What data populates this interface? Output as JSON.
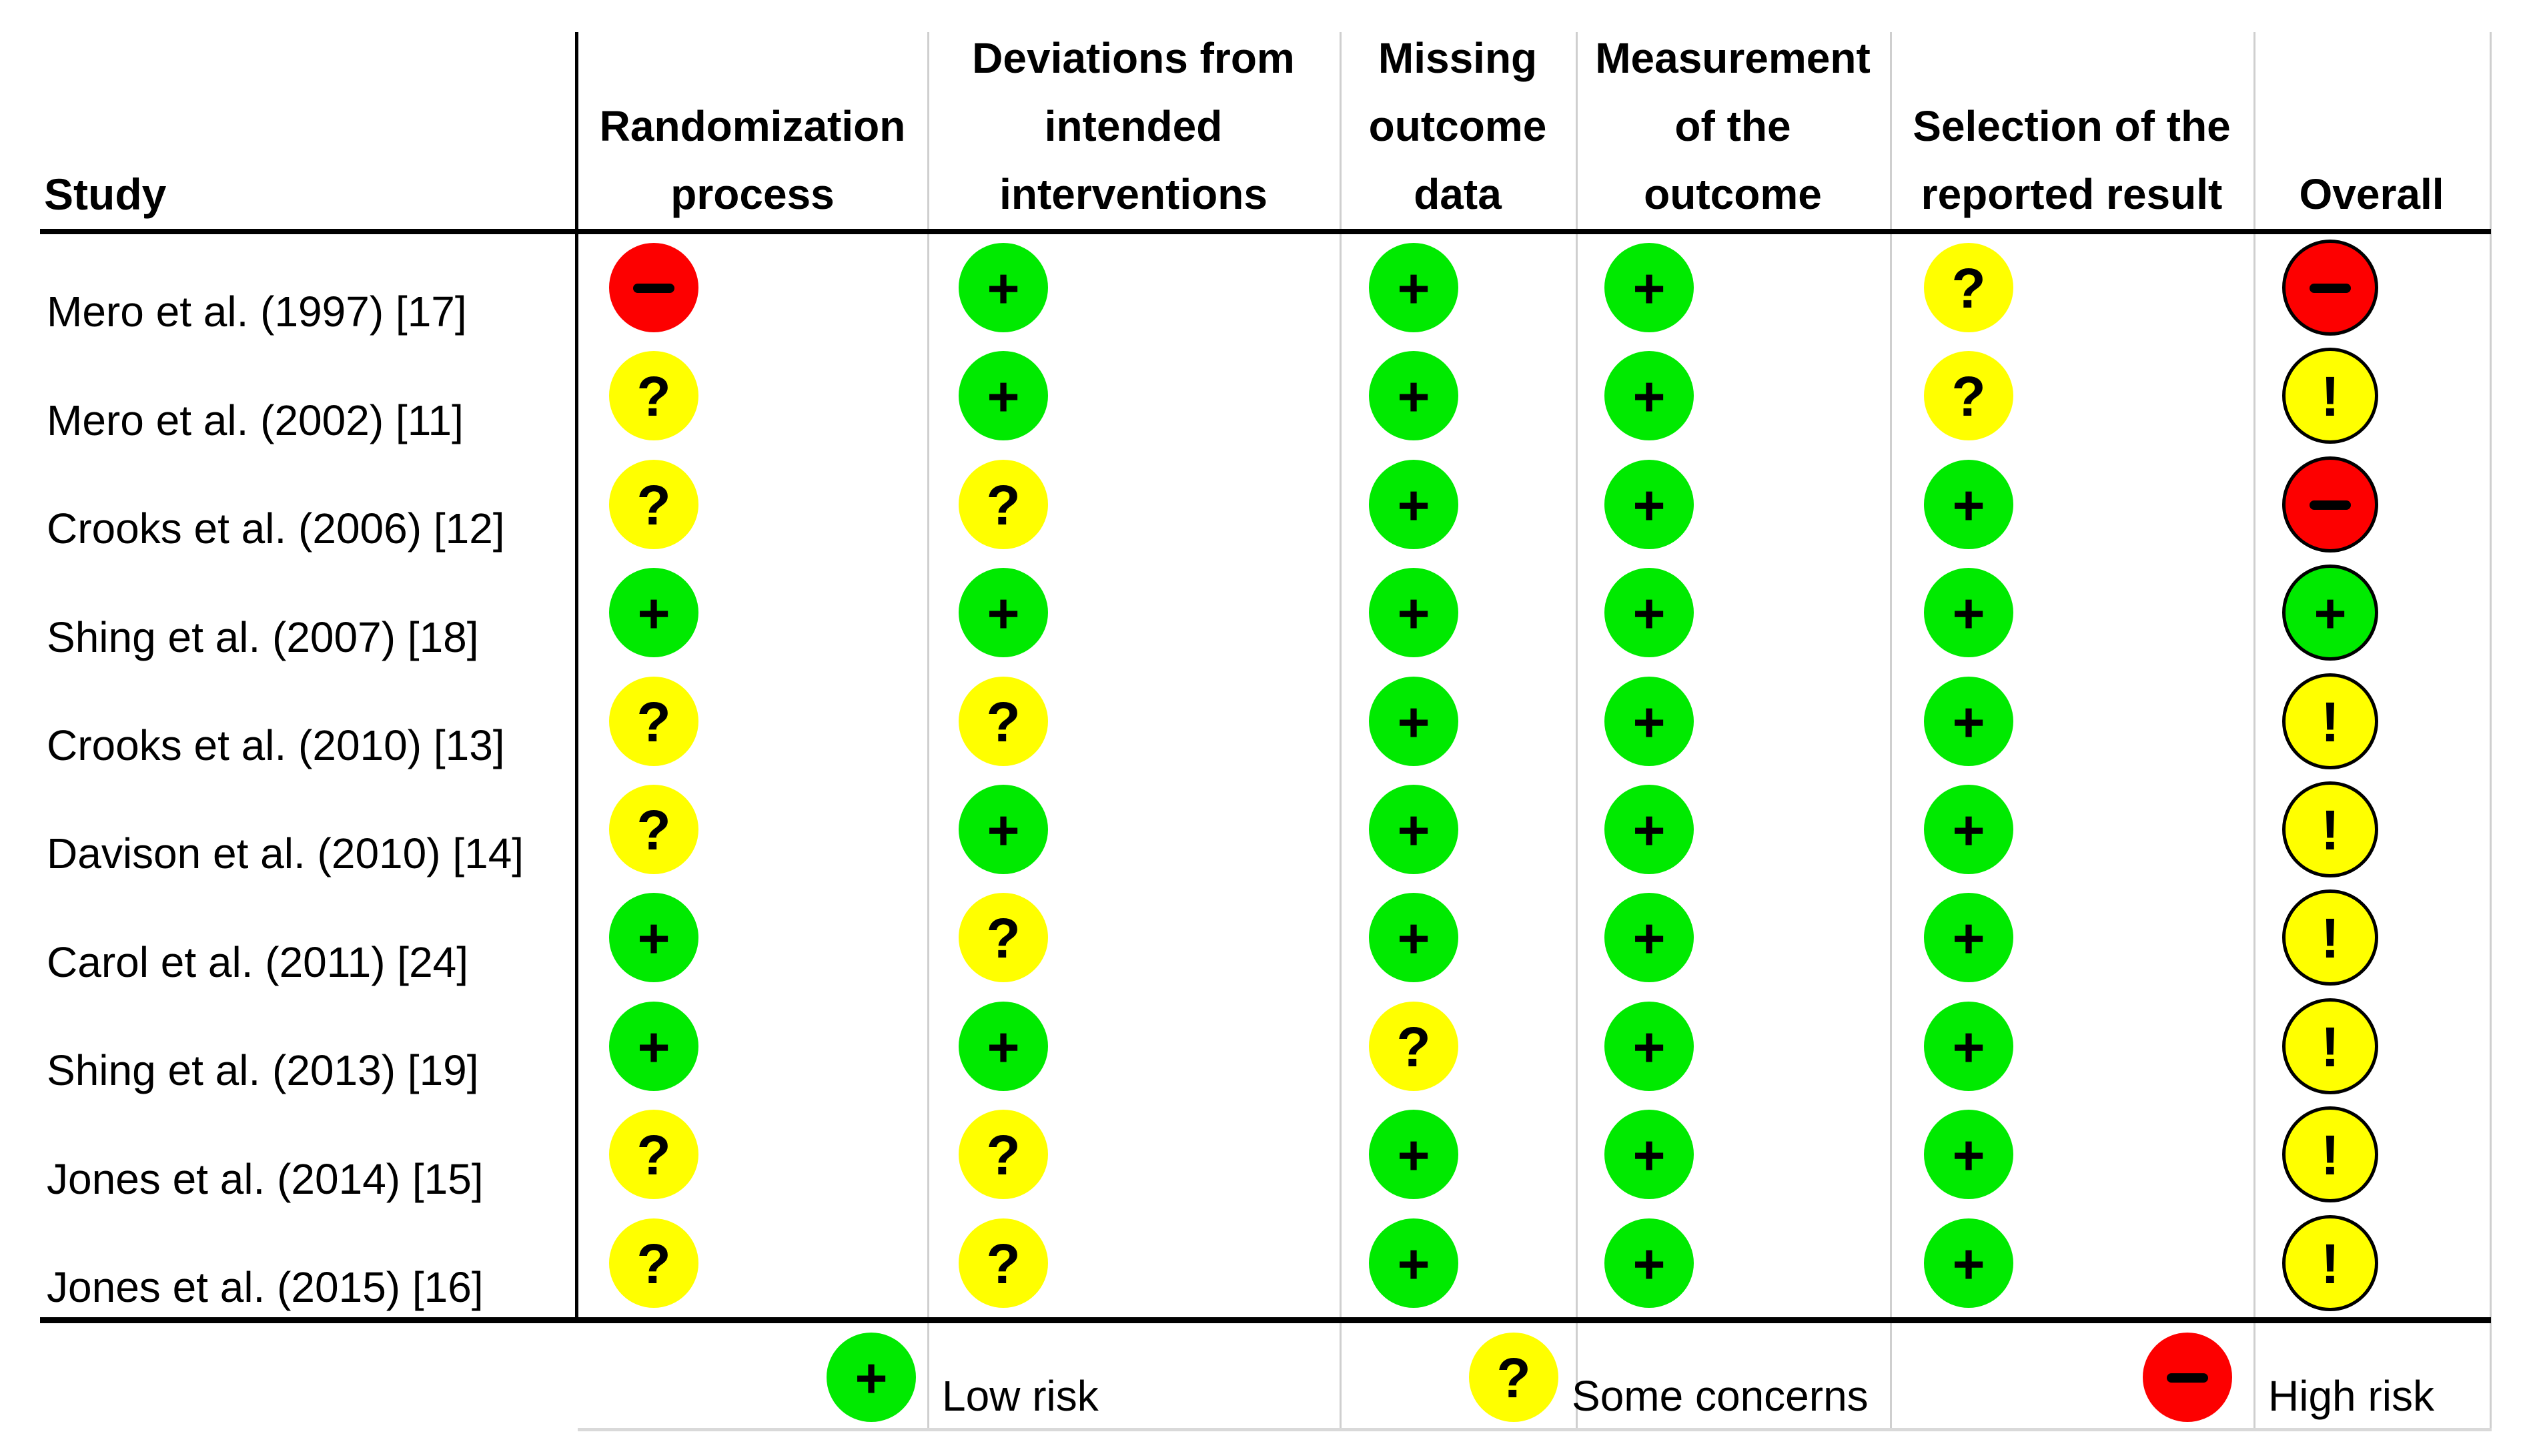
{
  "chart_data": {
    "type": "table",
    "study_header": "Study",
    "domain_columns": [
      {
        "label": "Randomization process",
        "lines": [
          "Randomization",
          "process"
        ]
      },
      {
        "label": "Deviations from intended interventions",
        "lines": [
          "Deviations from",
          "intended",
          "interventions"
        ]
      },
      {
        "label": "Missing outcome data",
        "lines": [
          "Missing",
          "outcome",
          "data"
        ]
      },
      {
        "label": "Measurement of the outcome",
        "lines": [
          "Measurement",
          "of the",
          "outcome"
        ]
      },
      {
        "label": "Selection of the reported result",
        "lines": [
          "Selection of the",
          "reported result"
        ]
      },
      {
        "label": "Overall",
        "lines": [
          "Overall"
        ]
      }
    ],
    "rating_colors": {
      "low": "#00ea00",
      "some": "#ffff00",
      "high": "#fd0000"
    },
    "domain_symbols": {
      "low": "+",
      "some": "?",
      "high": "-"
    },
    "overall_symbols": {
      "low": "+",
      "some": "!",
      "high": "-"
    },
    "rows": [
      {
        "study": "Mero et al. (1997) [17]",
        "domains": [
          "high",
          "low",
          "low",
          "low",
          "some"
        ],
        "overall": "high"
      },
      {
        "study": "Mero et al. (2002) [11]",
        "domains": [
          "some",
          "low",
          "low",
          "low",
          "some"
        ],
        "overall": "some"
      },
      {
        "study": "Crooks et al. (2006) [12]",
        "domains": [
          "some",
          "some",
          "low",
          "low",
          "low"
        ],
        "overall": "high"
      },
      {
        "study": "Shing et al. (2007) [18]",
        "domains": [
          "low",
          "low",
          "low",
          "low",
          "low"
        ],
        "overall": "low"
      },
      {
        "study": "Crooks et al. (2010) [13]",
        "domains": [
          "some",
          "some",
          "low",
          "low",
          "low"
        ],
        "overall": "some"
      },
      {
        "study": "Davison et al. (2010) [14]",
        "domains": [
          "some",
          "low",
          "low",
          "low",
          "low"
        ],
        "overall": "some"
      },
      {
        "study": "Carol et al. (2011) [24]",
        "domains": [
          "low",
          "some",
          "low",
          "low",
          "low"
        ],
        "overall": "some"
      },
      {
        "study": "Shing et al. (2013) [19]",
        "domains": [
          "low",
          "low",
          "some",
          "low",
          "low"
        ],
        "overall": "some"
      },
      {
        "study": "Jones et al. (2014) [15]",
        "domains": [
          "some",
          "some",
          "low",
          "low",
          "low"
        ],
        "overall": "some"
      },
      {
        "study": "Jones et al. (2015) [16]",
        "domains": [
          "some",
          "some",
          "low",
          "low",
          "low"
        ],
        "overall": "some"
      }
    ],
    "legend": [
      {
        "rating": "low",
        "symbol": "+",
        "label": "Low risk"
      },
      {
        "rating": "some",
        "symbol": "?",
        "label": "Some concerns"
      },
      {
        "rating": "high",
        "symbol": "-",
        "label": "High risk"
      }
    ]
  }
}
